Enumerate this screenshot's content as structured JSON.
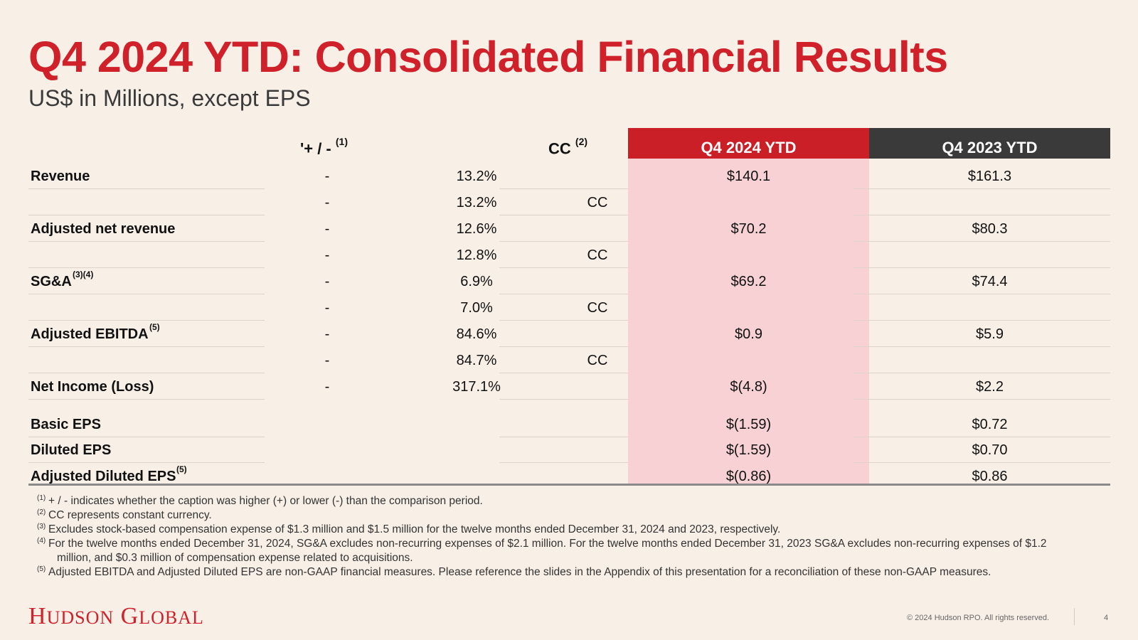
{
  "title": "Q4 2024 YTD: Consolidated Financial Results",
  "subtitle": "US$ in Millions, except EPS",
  "header": {
    "sign_label": "'+ / -",
    "sign_note": "(1)",
    "cc_label": "CC",
    "cc_note": "(2)",
    "current_col": "Q4 2024 YTD",
    "prior_col": "Q4 2023 YTD"
  },
  "rows": [
    {
      "label": "Revenue",
      "sup": "",
      "sign": "-",
      "pct": "13.2%",
      "cc": "",
      "current": "$140.1",
      "prior": "$161.3"
    },
    {
      "label": "",
      "sup": "",
      "sign": "-",
      "pct": "13.2%",
      "cc": "CC",
      "current": "",
      "prior": ""
    },
    {
      "label": "Adjusted net revenue",
      "sup": "",
      "sign": "-",
      "pct": "12.6%",
      "cc": "",
      "current": "$70.2",
      "prior": "$80.3"
    },
    {
      "label": "",
      "sup": "",
      "sign": "-",
      "pct": "12.8%",
      "cc": "CC",
      "current": "",
      "prior": ""
    },
    {
      "label": "SG&A",
      "sup": "(3)(4)",
      "sign": "-",
      "pct": "6.9%",
      "cc": "",
      "current": "$69.2",
      "prior": "$74.4"
    },
    {
      "label": "",
      "sup": "",
      "sign": "-",
      "pct": "7.0%",
      "cc": "CC",
      "current": "",
      "prior": ""
    },
    {
      "label": "Adjusted EBITDA",
      "sup": "(5)",
      "sign": "-",
      "pct": "84.6%",
      "cc": "",
      "current": "$0.9",
      "prior": "$5.9"
    },
    {
      "label": "",
      "sup": "",
      "sign": "-",
      "pct": "84.7%",
      "cc": "CC",
      "current": "",
      "prior": ""
    },
    {
      "label": "Net Income (Loss)",
      "sup": "",
      "sign": "-",
      "pct": "317.1%",
      "cc": "",
      "current": "$(4.8)",
      "prior": "$2.2"
    },
    {
      "label": "Basic EPS",
      "sup": "",
      "sign": "",
      "pct": "",
      "cc": "",
      "current": "$(1.59)",
      "prior": "$0.72"
    },
    {
      "label": "Diluted EPS",
      "sup": "",
      "sign": "",
      "pct": "",
      "cc": "",
      "current": "$(1.59)",
      "prior": "$0.70"
    },
    {
      "label": "Adjusted Diluted EPS",
      "sup": "(5)",
      "sign": "",
      "pct": "",
      "cc": "",
      "current": "$(0.86)",
      "prior": "$0.86"
    }
  ],
  "footnotes": [
    {
      "num": "(1)",
      "text": "+ / - indicates whether the caption was higher (+) or lower (-) than the comparison period."
    },
    {
      "num": "(2)",
      "text": "CC represents constant currency."
    },
    {
      "num": "(3)",
      "text": "Excludes stock-based compensation expense of $1.3 million and $1.5 million for the twelve months ended December 31, 2024 and 2023, respectively."
    },
    {
      "num": "(4)",
      "text": " For the twelve months ended December 31, 2024, SG&A excludes non-recurring expenses of $2.1 million. For the twelve months ended December 31, 2023 SG&A excludes non-recurring expenses of $1.2"
    },
    {
      "num": "",
      "text": "million, and $0.3 million of compensation expense related to acquisitions."
    },
    {
      "num": "(5)",
      "text": " Adjusted EBITDA and Adjusted Diluted EPS are non-GAAP financial measures. Please reference the slides in the Appendix of this presentation for a reconciliation of these non-GAAP measures."
    }
  ],
  "footer": {
    "logo_h": "H",
    "logo_udson": "UDSON",
    "logo_g": "G",
    "logo_lobal": "LOBAL",
    "copyright": "© 2024 Hudson RPO. All rights reserved.",
    "page_number": "4"
  },
  "colors": {
    "accent_red": "#d0202a",
    "header_dark": "#3a3a3a",
    "highlight_pink": "#f7d1d3",
    "background": "#f8efe7"
  }
}
